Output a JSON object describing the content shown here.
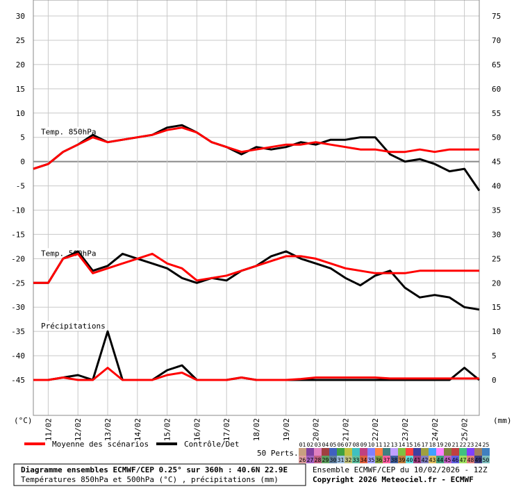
{
  "chart_data": {
    "type": "line",
    "panel_labels": [
      "Temp. 850hPa",
      "Temp. 500hPa",
      "Précipitations"
    ],
    "y_unit": "(°C)",
    "y2_unit": "(mm)",
    "x": [
      0,
      12,
      24,
      36,
      48,
      60,
      72,
      84,
      96,
      108,
      120,
      132,
      144,
      156,
      168,
      180,
      192,
      204,
      216,
      228,
      240,
      252,
      264,
      276,
      288,
      300,
      312,
      324,
      336,
      348,
      360
    ],
    "xlim": [
      0,
      360
    ],
    "xticks": [
      {
        "value": 12,
        "label": "11/02"
      },
      {
        "value": 36,
        "label": "12/02"
      },
      {
        "value": 60,
        "label": "13/02"
      },
      {
        "value": 84,
        "label": "14/02"
      },
      {
        "value": 108,
        "label": "15/02"
      },
      {
        "value": 132,
        "label": "16/02"
      },
      {
        "value": 156,
        "label": "17/02"
      },
      {
        "value": 180,
        "label": "18/02"
      },
      {
        "value": 204,
        "label": "19/02"
      },
      {
        "value": 228,
        "label": "20/02"
      },
      {
        "value": 252,
        "label": "21/02"
      },
      {
        "value": 276,
        "label": "22/02"
      },
      {
        "value": 300,
        "label": "23/02"
      },
      {
        "value": 324,
        "label": "24/02"
      },
      {
        "value": 348,
        "label": "25/02"
      }
    ],
    "ylim": [
      -52.3,
      33.3
    ],
    "yticks": [
      30,
      25,
      20,
      15,
      10,
      5,
      0,
      -5,
      -10,
      -15,
      -20,
      -25,
      -30,
      -35,
      -40,
      -45
    ],
    "y2lim": [
      -7.3,
      78.3
    ],
    "y2ticks": [
      75,
      70,
      65,
      60,
      55,
      50,
      45,
      40,
      35,
      30,
      25,
      20,
      15,
      10,
      5,
      0
    ],
    "grid": true,
    "series": [
      {
        "name": "Moyenne des scénarios",
        "color": "#ff0000",
        "t850": [
          -1.5,
          -0.5,
          2,
          3.5,
          5,
          4,
          4.5,
          5,
          5.5,
          6.5,
          7,
          6,
          4,
          3,
          2,
          2.5,
          3,
          3.5,
          3.5,
          4,
          3.5,
          3,
          2.5,
          2.5,
          2,
          2,
          2.5,
          2,
          2.5,
          2.5,
          2.5
        ],
        "t500": [
          -25,
          -25,
          -20,
          -19,
          -23,
          -22,
          -21,
          -20,
          -19,
          -21,
          -22,
          -24.5,
          -24,
          -23.5,
          -22.5,
          -21.5,
          -20.5,
          -19.5,
          -19.5,
          -20,
          -21,
          -22,
          -22.5,
          -23,
          -23,
          -23,
          -22.5,
          -22.5,
          -22.5,
          -22.5,
          -22.5
        ],
        "precip": [
          0,
          0,
          0.5,
          0,
          0,
          2.5,
          0,
          0,
          0,
          1,
          1.5,
          0,
          0,
          0,
          0.5,
          0,
          0,
          0,
          0.2,
          0.5,
          0.5,
          0.5,
          0.5,
          0.5,
          0.3,
          0.3,
          0.3,
          0.3,
          0.3,
          0.3,
          0.3
        ]
      },
      {
        "name": "Contrôle/Det",
        "color": "#000000",
        "t850": [
          -1.5,
          -0.5,
          2,
          3.5,
          5.5,
          4,
          4.5,
          5,
          5.5,
          7,
          7.5,
          6,
          4,
          3,
          1.5,
          3,
          2.5,
          3,
          4,
          3.5,
          4.5,
          4.5,
          5,
          5,
          1.5,
          0,
          0.5,
          -0.5,
          -2,
          -1.5,
          -6
        ],
        "t500": [
          -25,
          -25,
          -20,
          -18.5,
          -22.5,
          -21.5,
          -19,
          -20,
          -21,
          -22,
          -24,
          -25,
          -24,
          -24.5,
          -22.5,
          -21.5,
          -19.5,
          -18.5,
          -20,
          -21,
          -22,
          -24,
          -25.5,
          -23.5,
          -22.5,
          -26,
          -28,
          -27.5,
          -28,
          -30,
          -30.5
        ],
        "precip": [
          0,
          0,
          0.5,
          1,
          0,
          10,
          0,
          0,
          0,
          2,
          3,
          0,
          0,
          0,
          0.5,
          0,
          0,
          0,
          0,
          0,
          0,
          0,
          0,
          0,
          0,
          0,
          0,
          0,
          0,
          2.5,
          0
        ]
      }
    ],
    "members": {
      "label": "50 Perts.",
      "names": [
        "01",
        "02",
        "03",
        "04",
        "05",
        "06",
        "07",
        "08",
        "09",
        "10",
        "11",
        "12",
        "13",
        "14",
        "15",
        "16",
        "17",
        "18",
        "19",
        "20",
        "21",
        "22",
        "23",
        "24",
        "25",
        "26",
        "27",
        "28",
        "29",
        "30",
        "31",
        "32",
        "33",
        "34",
        "35",
        "36",
        "37",
        "38",
        "39",
        "40",
        "41",
        "42",
        "43",
        "44",
        "45",
        "46",
        "47",
        "48",
        "49",
        "50"
      ],
      "colors": [
        "#c8a080",
        "#8040a0",
        "#e080c0",
        "#a04040",
        "#4060c0",
        "#40a040",
        "#c0c040",
        "#40c0c0",
        "#c04080",
        "#8080ff",
        "#ff8040",
        "#408080",
        "#c0a0ff",
        "#80c040",
        "#ff4040",
        "#4040a0",
        "#a0a040",
        "#40a0ff",
        "#ff80ff",
        "#808040",
        "#c04040",
        "#40c080",
        "#8040ff",
        "#a08060",
        "#4080c0",
        "#e0a0a0",
        "#a060c0",
        "#c06080",
        "#60a060",
        "#6080a0",
        "#a0c0e0",
        "#c0c080",
        "#60c0a0",
        "#e06040",
        "#a0a0ff",
        "#80a040",
        "#ff60a0",
        "#4060a0",
        "#c08040",
        "#60e0e0",
        "#a04080",
        "#8080c0",
        "#e0c060",
        "#40a080",
        "#c060c0",
        "#6060e0",
        "#a0e060",
        "#e08080",
        "#404080",
        "#80c0c0"
      ]
    }
  },
  "footer": {
    "title": "Diagramme ensembles ECMWF/CEP 0.25° sur 360h : 40.6N 22.9E",
    "subtitle": "Températures 850hPa et 500hPa (°C) , précipitations (mm)",
    "run": "Ensemble ECMWF/CEP du 10/02/2026 - 12Z",
    "copyright": "Copyright 2026 Meteociel.fr - ECMWF"
  }
}
